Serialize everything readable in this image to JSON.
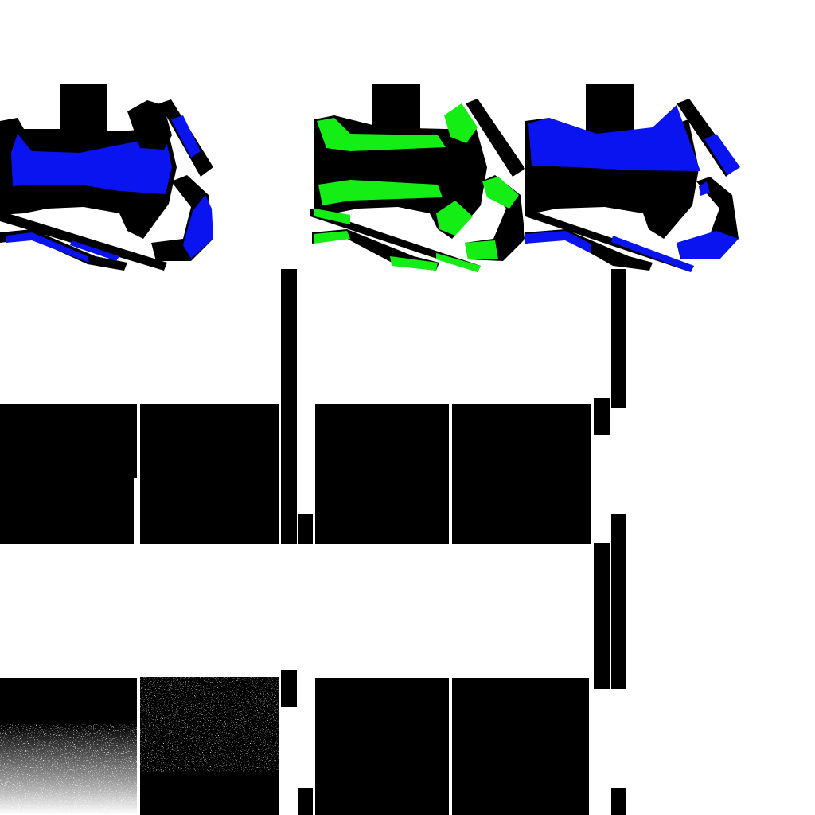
{
  "texture_atlas": {
    "background": "#ffffff",
    "colors": {
      "black": "#000000",
      "white": "#ffffff",
      "blue": "#0a14f0",
      "green": "#14ee14"
    },
    "uv_islands": [
      {
        "id": "uv-island-left",
        "mask_color": "blue"
      },
      {
        "id": "uv-island-middle",
        "mask_color": "green"
      },
      {
        "id": "uv-island-right",
        "mask_color": "blue"
      }
    ],
    "texture_blocks": {
      "middle_row": 6,
      "bottom_row": 4,
      "noise_tiles": 2
    }
  }
}
